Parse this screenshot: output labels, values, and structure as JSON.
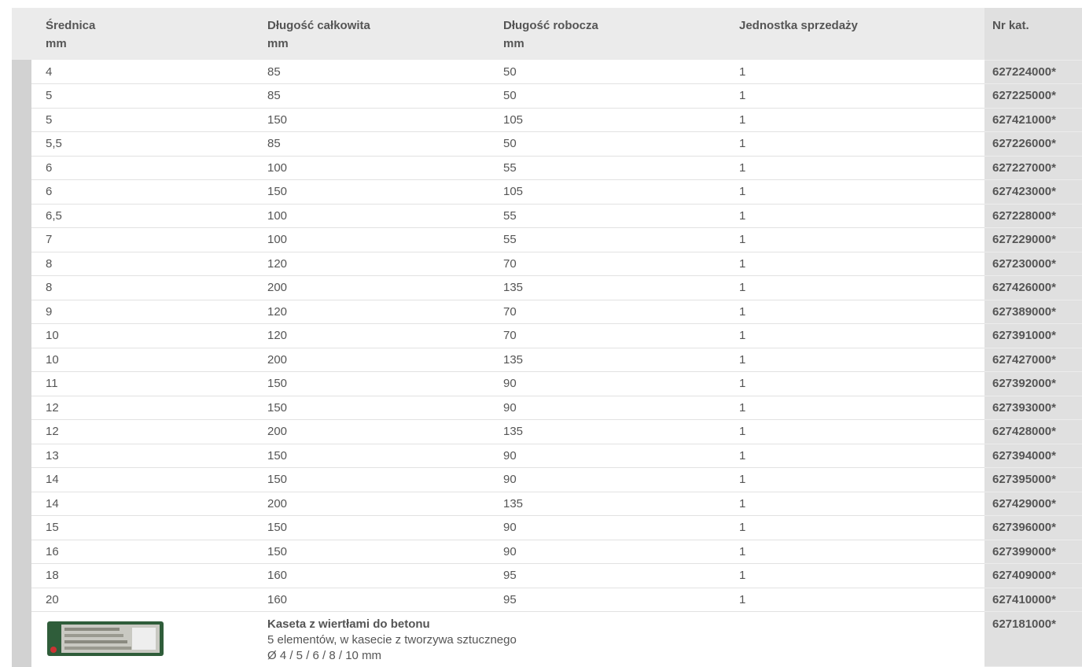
{
  "table": {
    "header": [
      [
        "Średnica",
        "mm"
      ],
      [
        "Długość całkowita",
        "mm"
      ],
      [
        "Długość robocza",
        "mm"
      ],
      [
        "Jednostka sprzedaży"
      ],
      [
        "Nr kat."
      ]
    ],
    "rows": [
      [
        "4",
        "85",
        "50",
        "1",
        "627224000*"
      ],
      [
        "5",
        "85",
        "50",
        "1",
        "627225000*"
      ],
      [
        "5",
        "150",
        "105",
        "1",
        "627421000*"
      ],
      [
        "5,5",
        "85",
        "50",
        "1",
        "627226000*"
      ],
      [
        "6",
        "100",
        "55",
        "1",
        "627227000*"
      ],
      [
        "6",
        "150",
        "105",
        "1",
        "627423000*"
      ],
      [
        "6,5",
        "100",
        "55",
        "1",
        "627228000*"
      ],
      [
        "7",
        "100",
        "55",
        "1",
        "627229000*"
      ],
      [
        "8",
        "120",
        "70",
        "1",
        "627230000*"
      ],
      [
        "8",
        "200",
        "135",
        "1",
        "627426000*"
      ],
      [
        "9",
        "120",
        "70",
        "1",
        "627389000*"
      ],
      [
        "10",
        "120",
        "70",
        "1",
        "627391000*"
      ],
      [
        "10",
        "200",
        "135",
        "1",
        "627427000*"
      ],
      [
        "11",
        "150",
        "90",
        "1",
        "627392000*"
      ],
      [
        "12",
        "150",
        "90",
        "1",
        "627393000*"
      ],
      [
        "12",
        "200",
        "135",
        "1",
        "627428000*"
      ],
      [
        "13",
        "150",
        "90",
        "1",
        "627394000*"
      ],
      [
        "14",
        "150",
        "90",
        "1",
        "627395000*"
      ],
      [
        "14",
        "200",
        "135",
        "1",
        "627429000*"
      ],
      [
        "15",
        "150",
        "90",
        "1",
        "627396000*"
      ],
      [
        "16",
        "150",
        "90",
        "1",
        "627399000*"
      ],
      [
        "18",
        "160",
        "95",
        "1",
        "627409000*"
      ],
      [
        "20",
        "160",
        "95",
        "1",
        "627410000*"
      ]
    ],
    "set": {
      "title": "Kaseta z wiertłami do betonu",
      "lines": [
        "5 elementów, w kasecie z tworzywa sztucznego",
        "Ø 4 / 5 / 6 / 8 / 10 mm"
      ],
      "number": "627181000*"
    }
  }
}
